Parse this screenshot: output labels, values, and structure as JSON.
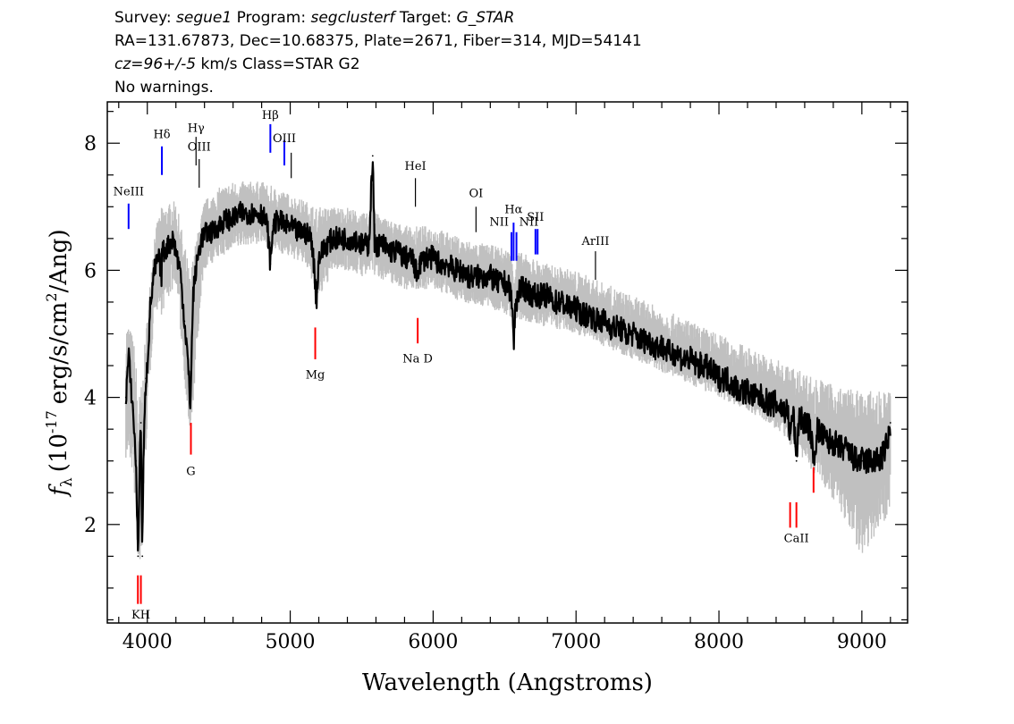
{
  "header": {
    "survey_label": "Survey:",
    "survey": "segue1",
    "program_label": "Program:",
    "program": "segclusterf",
    "target_label": "Target:",
    "target": "G_STAR",
    "line2": "RA=131.67873, Dec=10.68375, Plate=2671, Fiber=314, MJD=54141",
    "cz": "cz=96+/-5",
    "line3_rest": "km/s Class=STAR G2",
    "line4": "No warnings."
  },
  "chart_data": {
    "type": "line",
    "xlabel": "Wavelength (Angstroms)",
    "ylabel_prefix": "f",
    "ylabel_sub": "λ",
    "ylabel_units_a": "(10",
    "ylabel_exp": "-17",
    "ylabel_units_b": "erg/s/cm",
    "ylabel_exp2": "2",
    "ylabel_units_c": "/Ang)",
    "xlim": [
      3720,
      9320
    ],
    "ylim": [
      0.45,
      8.65
    ],
    "xticks": [
      4000,
      5000,
      6000,
      7000,
      8000,
      9000
    ],
    "xtick_labels": [
      "4000",
      "5000",
      "6000",
      "7000",
      "8000",
      "9000"
    ],
    "yticks": [
      2,
      4,
      6,
      8
    ],
    "ytick_labels": [
      "2",
      "4",
      "6",
      "8"
    ],
    "grid": false,
    "series": [
      {
        "role": "flux",
        "color": "#000000",
        "x": [
          3850,
          3870,
          3880,
          3900,
          3920,
          3935,
          3945,
          3955,
          3965,
          3970,
          3980,
          3990,
          4000,
          4020,
          4050,
          4080,
          4100,
          4102,
          4120,
          4150,
          4180,
          4200,
          4230,
          4260,
          4280,
          4300,
          4305,
          4320,
          4340,
          4360,
          4380,
          4420,
          4460,
          4500,
          4550,
          4600,
          4650,
          4700,
          4750,
          4800,
          4840,
          4861,
          4880,
          4920,
          4960,
          5000,
          5050,
          5100,
          5150,
          5172,
          5183,
          5200,
          5250,
          5300,
          5350,
          5400,
          5450,
          5500,
          5550,
          5577,
          5590,
          5600,
          5650,
          5700,
          5750,
          5800,
          5850,
          5890,
          5900,
          5950,
          6000,
          6050,
          6100,
          6150,
          6200,
          6250,
          6300,
          6350,
          6400,
          6450,
          6500,
          6540,
          6555,
          6563,
          6575,
          6600,
          6650,
          6700,
          6750,
          6800,
          6850,
          6900,
          6950,
          7000,
          7050,
          7100,
          7150,
          7200,
          7250,
          7300,
          7350,
          7400,
          7450,
          7500,
          7550,
          7600,
          7650,
          7700,
          7750,
          7800,
          7850,
          7900,
          7950,
          8000,
          8050,
          8100,
          8150,
          8200,
          8250,
          8300,
          8350,
          8400,
          8450,
          8480,
          8498,
          8520,
          8542,
          8560,
          8600,
          8640,
          8662,
          8690,
          8720,
          8760,
          8800,
          8840,
          8880,
          8920,
          8960,
          9000,
          9040,
          9080,
          9120,
          9150,
          9180,
          9200
        ],
        "y": [
          4.0,
          4.7,
          4.3,
          3.8,
          3.0,
          1.5,
          2.8,
          3.6,
          1.5,
          2.6,
          3.6,
          4.3,
          4.5,
          5.4,
          6.0,
          6.2,
          5.9,
          6.3,
          6.3,
          6.4,
          6.5,
          6.3,
          6.0,
          5.2,
          4.7,
          3.9,
          4.2,
          5.6,
          6.0,
          6.3,
          6.5,
          6.6,
          6.6,
          6.7,
          6.8,
          6.8,
          6.9,
          6.9,
          6.9,
          6.9,
          6.7,
          6.1,
          6.7,
          6.8,
          6.7,
          6.7,
          6.6,
          6.6,
          6.5,
          5.9,
          5.5,
          6.2,
          6.4,
          6.5,
          6.5,
          6.5,
          6.5,
          6.4,
          6.4,
          7.8,
          6.4,
          6.4,
          6.4,
          6.3,
          6.3,
          6.2,
          6.2,
          5.9,
          6.1,
          6.2,
          6.2,
          6.1,
          6.1,
          6.0,
          6.0,
          5.9,
          5.9,
          5.9,
          5.9,
          5.8,
          5.8,
          5.7,
          5.4,
          4.8,
          5.4,
          5.7,
          5.7,
          5.6,
          5.6,
          5.6,
          5.5,
          5.5,
          5.4,
          5.4,
          5.3,
          5.3,
          5.2,
          5.2,
          5.1,
          5.1,
          5.0,
          5.0,
          4.9,
          4.9,
          4.8,
          4.8,
          4.7,
          4.7,
          4.6,
          4.6,
          4.5,
          4.5,
          4.4,
          4.3,
          4.3,
          4.2,
          4.1,
          4.1,
          4.0,
          4.0,
          3.9,
          3.9,
          3.8,
          3.8,
          3.4,
          3.8,
          3.0,
          3.7,
          3.6,
          3.5,
          3.0,
          3.5,
          3.4,
          3.3,
          3.3,
          3.2,
          3.2,
          3.1,
          3.0,
          3.0,
          3.0,
          3.0,
          3.0,
          3.1,
          3.3,
          3.6
        ]
      },
      {
        "role": "error-band",
        "color": "#c0c0c0",
        "x": [
          3850,
          3900,
          3950,
          4000,
          4050,
          4100,
          4200,
          4300,
          4400,
          4500,
          4600,
          4700,
          4800,
          4900,
          5000,
          5100,
          5200,
          5300,
          5400,
          5500,
          5600,
          5700,
          5800,
          5900,
          6000,
          6200,
          6400,
          6600,
          6800,
          7000,
          7200,
          7400,
          7600,
          7800,
          8000,
          8200,
          8400,
          8600,
          8800,
          9000,
          9200
        ],
        "y_upper": [
          5.2,
          5.0,
          4.0,
          5.3,
          6.6,
          7.0,
          7.1,
          6.0,
          7.1,
          7.3,
          7.4,
          7.4,
          7.4,
          7.3,
          7.2,
          7.1,
          7.0,
          7.0,
          7.0,
          6.9,
          6.9,
          6.8,
          6.7,
          6.7,
          6.7,
          6.5,
          6.4,
          6.3,
          6.1,
          6.0,
          5.8,
          5.6,
          5.4,
          5.2,
          5.0,
          4.8,
          4.6,
          4.4,
          4.2,
          4.1,
          4.1
        ],
        "y_lower": [
          3.0,
          2.8,
          0.9,
          3.6,
          5.4,
          5.3,
          5.8,
          3.3,
          6.0,
          6.2,
          6.3,
          6.4,
          6.4,
          6.3,
          6.2,
          6.1,
          5.5,
          6.0,
          6.0,
          5.9,
          5.9,
          5.8,
          5.7,
          5.7,
          5.7,
          5.5,
          5.4,
          5.2,
          5.1,
          5.0,
          4.8,
          4.6,
          4.4,
          4.2,
          4.0,
          3.8,
          3.5,
          3.0,
          2.4,
          1.5,
          2.2
        ]
      }
    ],
    "lines": [
      {
        "label": "NeIII",
        "wave": 3869,
        "y0": 6.65,
        "y1": 7.05,
        "color": "#0000ff",
        "label_y": 7.18,
        "label_pos": "above"
      },
      {
        "label": "Hδ",
        "wave": 4102,
        "y0": 7.5,
        "y1": 7.95,
        "color": "#0000ff",
        "label_y": 8.08,
        "label_pos": "above"
      },
      {
        "label": "Hγ",
        "wave": 4341,
        "y0": 7.65,
        "y1": 8.1,
        "color": "#000000",
        "label_y": 8.18,
        "label_pos": "above"
      },
      {
        "label": "OIII",
        "wave": 4363,
        "y0": 7.3,
        "y1": 7.75,
        "color": "#000000",
        "label_y": 7.88,
        "label_pos": "above"
      },
      {
        "label": "Hβ",
        "wave": 4861,
        "y0": 7.85,
        "y1": 8.3,
        "color": "#0000ff",
        "label_y": 8.38,
        "label_pos": "above"
      },
      {
        "label": "OIII",
        "wave": 4959,
        "y0": 7.65,
        "y1": 8.05,
        "color": "#0000ff",
        "label_y": 8.02,
        "label_pos": "above"
      },
      {
        "label": "",
        "wave": 5007,
        "y0": 7.45,
        "y1": 7.85,
        "color": "#000000",
        "label_y": 0,
        "label_pos": "none"
      },
      {
        "label": "HeI",
        "wave": 5876,
        "y0": 7.0,
        "y1": 7.45,
        "color": "#000000",
        "label_y": 7.58,
        "label_pos": "above"
      },
      {
        "label": "OI",
        "wave": 6300,
        "y0": 6.6,
        "y1": 7.0,
        "color": "#000000",
        "label_y": 7.15,
        "label_pos": "above"
      },
      {
        "label": "NII",
        "wave": 6548,
        "y0": 6.15,
        "y1": 6.6,
        "color": "#0000ff",
        "label_y": 6.7,
        "label_pos": "left"
      },
      {
        "label": "Hα",
        "wave": 6563,
        "y0": 6.15,
        "y1": 6.75,
        "color": "#0000ff",
        "label_y": 6.9,
        "label_pos": "above"
      },
      {
        "label": "NII",
        "wave": 6583,
        "y0": 6.15,
        "y1": 6.6,
        "color": "#0000ff",
        "label_y": 6.7,
        "label_pos": "right"
      },
      {
        "label": "SII",
        "wave": 6716,
        "y0": 6.25,
        "y1": 6.65,
        "color": "#0000ff",
        "label_y": 6.78,
        "label_pos": "above"
      },
      {
        "label": "",
        "wave": 6731,
        "y0": 6.25,
        "y1": 6.65,
        "color": "#0000ff",
        "label_y": 0,
        "label_pos": "none"
      },
      {
        "label": "ArIII",
        "wave": 7136,
        "y0": 5.85,
        "y1": 6.3,
        "color": "#000000",
        "label_y": 6.4,
        "label_pos": "above"
      },
      {
        "label": "Na D",
        "wave": 5892,
        "y0": 4.85,
        "y1": 5.25,
        "color": "#ff0000",
        "label_y": 4.55,
        "label_pos": "below"
      },
      {
        "label": "Mg",
        "wave": 5175,
        "y0": 4.6,
        "y1": 5.1,
        "color": "#ff0000",
        "label_y": 4.3,
        "label_pos": "below"
      },
      {
        "label": "G",
        "wave": 4305,
        "y0": 3.1,
        "y1": 3.6,
        "color": "#ff0000",
        "label_y": 2.78,
        "label_pos": "below"
      },
      {
        "label": "",
        "wave": 8498,
        "y0": 1.95,
        "y1": 2.35,
        "color": "#ff0000",
        "label_y": 0,
        "label_pos": "none"
      },
      {
        "label": "CaII",
        "wave": 8542,
        "y0": 1.95,
        "y1": 2.35,
        "color": "#ff0000",
        "label_y": 1.72,
        "label_pos": "below"
      },
      {
        "label": "",
        "wave": 8662,
        "y0": 2.5,
        "y1": 2.9,
        "color": "#ff0000",
        "label_y": 0,
        "label_pos": "none"
      },
      {
        "label": "",
        "wave": 3934,
        "y0": 0.75,
        "y1": 1.2,
        "color": "#ff0000",
        "label_y": 0,
        "label_pos": "none"
      },
      {
        "label": "KH",
        "wave": 3955,
        "y0": 0.75,
        "y1": 1.2,
        "color": "#ff0000",
        "label_y": 0.52,
        "label_pos": "below"
      }
    ]
  }
}
